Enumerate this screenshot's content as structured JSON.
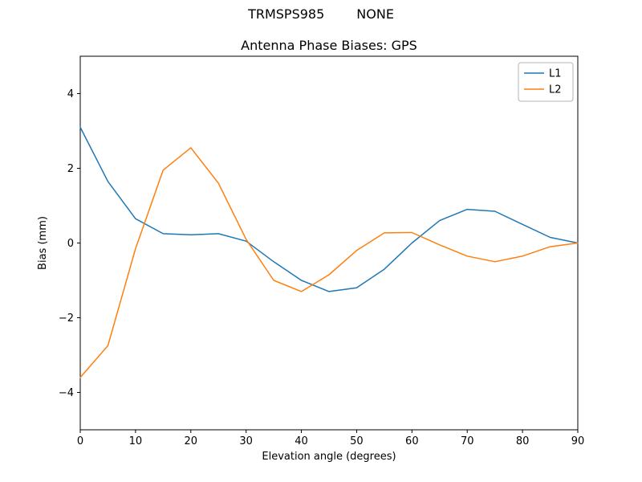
{
  "suptitle": {
    "left": "TRMSPS985",
    "right": "NONE"
  },
  "chart_data": {
    "type": "line",
    "title": "Antenna Phase Biases: GPS",
    "xlabel": "Elevation angle (degrees)",
    "ylabel": "Bias (mm)",
    "xlim": [
      0,
      90
    ],
    "ylim": [
      -5,
      5
    ],
    "xticks": [
      0,
      10,
      20,
      30,
      40,
      50,
      60,
      70,
      80,
      90
    ],
    "yticks": [
      -4,
      -2,
      0,
      2,
      4
    ],
    "grid": false,
    "legend_position": "upper right",
    "x": [
      0,
      5,
      10,
      15,
      20,
      25,
      30,
      35,
      40,
      45,
      50,
      55,
      60,
      65,
      70,
      75,
      80,
      85,
      90
    ],
    "series": [
      {
        "name": "L1",
        "color": "#1f77b4",
        "values": [
          3.1,
          1.65,
          0.65,
          0.25,
          0.22,
          0.25,
          0.05,
          -0.5,
          -1.0,
          -1.3,
          -1.2,
          -0.7,
          0.0,
          0.6,
          0.9,
          0.85,
          0.5,
          0.15,
          0.0
        ]
      },
      {
        "name": "L2",
        "color": "#ff7f0e",
        "values": [
          -3.6,
          -2.75,
          -0.15,
          1.95,
          2.55,
          1.6,
          0.1,
          -1.0,
          -1.3,
          -0.85,
          -0.2,
          0.27,
          0.28,
          -0.05,
          -0.35,
          -0.5,
          -0.35,
          -0.1,
          0.0
        ]
      }
    ],
    "axes_color": "#000000",
    "legend_border_color": "#b3b3b3"
  }
}
